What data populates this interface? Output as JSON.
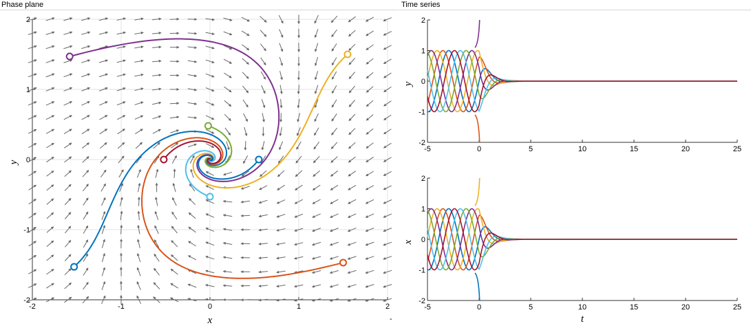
{
  "panels": {
    "left_title": "Phase plane",
    "right_title": "Time series"
  },
  "chart_data": [
    {
      "type": "line",
      "name": "phase-plane",
      "xlabel": "x",
      "ylabel": "y",
      "xlim": [
        -2,
        2
      ],
      "ylim": [
        -2,
        2
      ],
      "xticks": [
        -2,
        -1,
        0,
        1,
        2
      ],
      "yticks": [
        -2,
        -1,
        0,
        1,
        2
      ],
      "grid": true,
      "vector_field": {
        "system": "dx/dt = -y + 0.9x(x^2+y^2-1)... (stable spiral sink at origin)",
        "color": "#666666"
      },
      "trajectories": [
        {
          "color": "#0072BD",
          "start": [
            -1.53,
            -1.53
          ]
        },
        {
          "color": "#D95319",
          "start": [
            1.5,
            -1.47
          ]
        },
        {
          "color": "#EDB120",
          "start": [
            1.55,
            1.5
          ]
        },
        {
          "color": "#7E2F8E",
          "start": [
            -1.58,
            1.47
          ]
        },
        {
          "color": "#77AC30",
          "start": [
            -0.02,
            0.48
          ]
        },
        {
          "color": "#4DBEEE",
          "start": [
            0.0,
            -0.53
          ]
        },
        {
          "color": "#A2142F",
          "start": [
            -0.52,
            0.0
          ]
        },
        {
          "color": "#0072BD",
          "start": [
            0.55,
            0.0
          ]
        }
      ],
      "annotations": [
        "-"
      ]
    },
    {
      "type": "line",
      "name": "time-series-y",
      "xlabel": "",
      "ylabel": "y",
      "xlim": [
        -5,
        25
      ],
      "ylim": [
        -2,
        2
      ],
      "xticks": [
        -5,
        0,
        5,
        10,
        15,
        20,
        25
      ],
      "yticks": [
        -2,
        -1,
        0,
        1,
        2
      ],
      "series_colors": [
        "#0072BD",
        "#D95319",
        "#EDB120",
        "#7E2F8E",
        "#77AC30",
        "#4DBEEE",
        "#A2142F"
      ],
      "description_values": "seven phase-shifted sine-like curves of amplitude 1 for t in [-5,0], then decaying to 0 by t≈3; one curve diverges to +2 and one to -2 near t=0"
    },
    {
      "type": "line",
      "name": "time-series-x",
      "xlabel": "t",
      "ylabel": "x",
      "xlim": [
        -5,
        25
      ],
      "ylim": [
        -2,
        2
      ],
      "xticks": [
        -5,
        0,
        5,
        10,
        15,
        20,
        25
      ],
      "yticks": [
        -2,
        -1,
        0,
        1,
        2
      ],
      "series_colors": [
        "#0072BD",
        "#D95319",
        "#EDB120",
        "#7E2F8E",
        "#77AC30",
        "#4DBEEE",
        "#A2142F"
      ]
    }
  ]
}
